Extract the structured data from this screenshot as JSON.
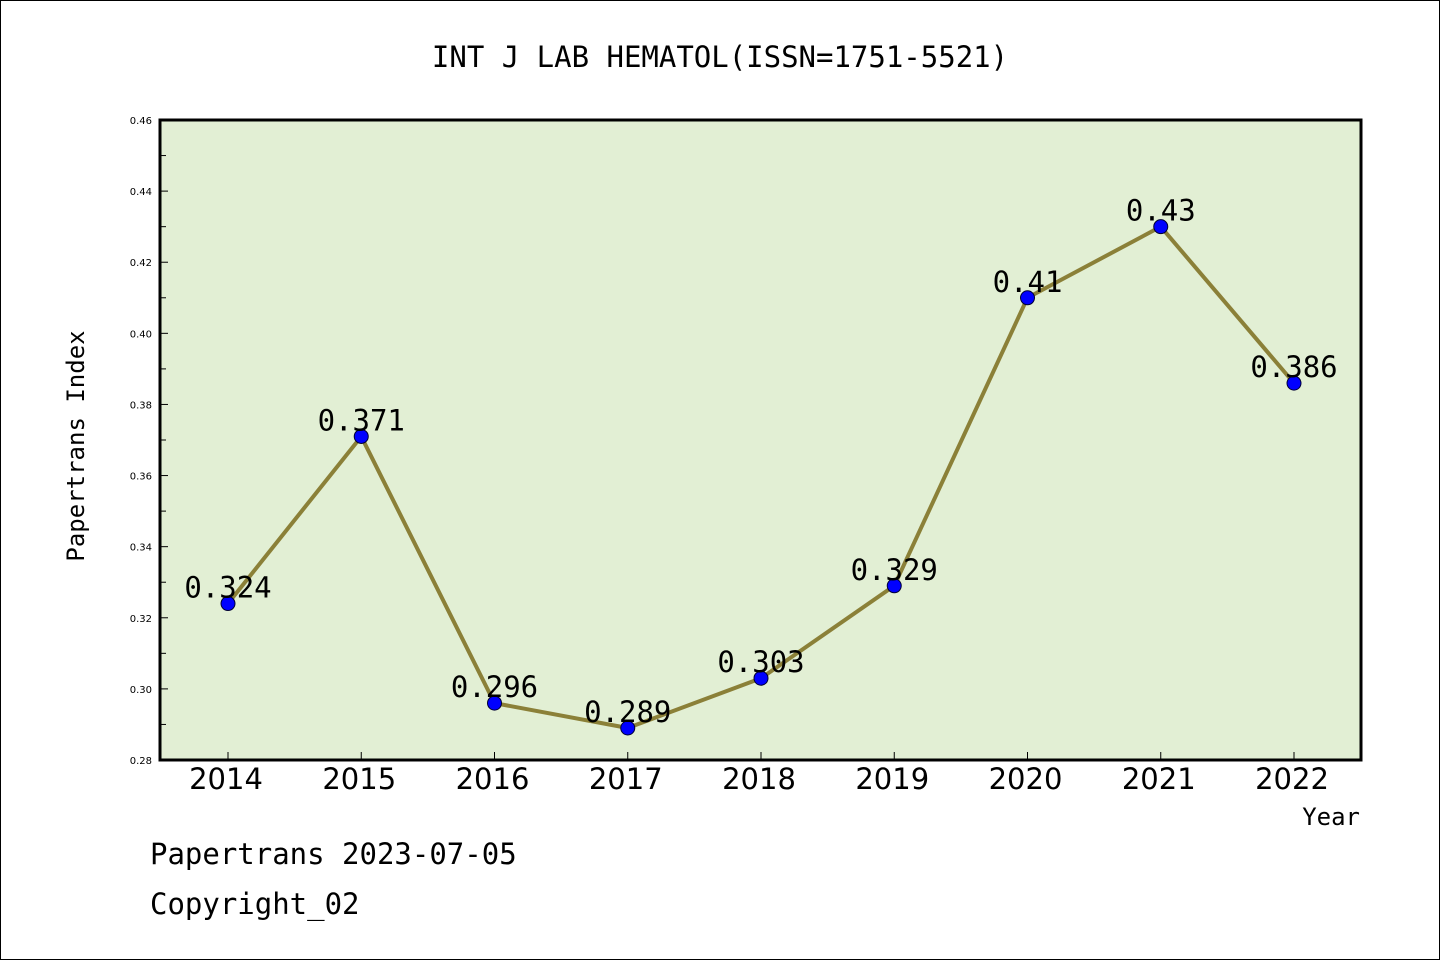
{
  "chart_data": {
    "type": "line",
    "title": "INT J LAB HEMATOL(ISSN=1751-5521)",
    "xlabel": "Year",
    "ylabel": "Papertrans Index",
    "categories": [
      "2014",
      "2015",
      "2016",
      "2017",
      "2018",
      "2019",
      "2020",
      "2021",
      "2022"
    ],
    "values": [
      0.324,
      0.371,
      0.296,
      0.289,
      0.303,
      0.329,
      0.41,
      0.43,
      0.386
    ],
    "data_labels": [
      "0.324",
      "0.371",
      "0.296",
      "0.289",
      "0.303",
      "0.329",
      "0.41",
      "0.43",
      "0.386"
    ],
    "ylim": [
      0.28,
      0.46
    ],
    "yticks": [
      "0.28",
      "0.30",
      "0.32",
      "0.34",
      "0.36",
      "0.38",
      "0.40",
      "0.42",
      "0.44",
      "0.46"
    ],
    "grid": false,
    "legend": "none",
    "colors": {
      "plot_background": "#e2efd4",
      "line": "#8b8038",
      "marker": "#0000ff"
    }
  },
  "footer": {
    "line1": "Papertrans 2023-07-05",
    "line2": "Copyright_02"
  }
}
